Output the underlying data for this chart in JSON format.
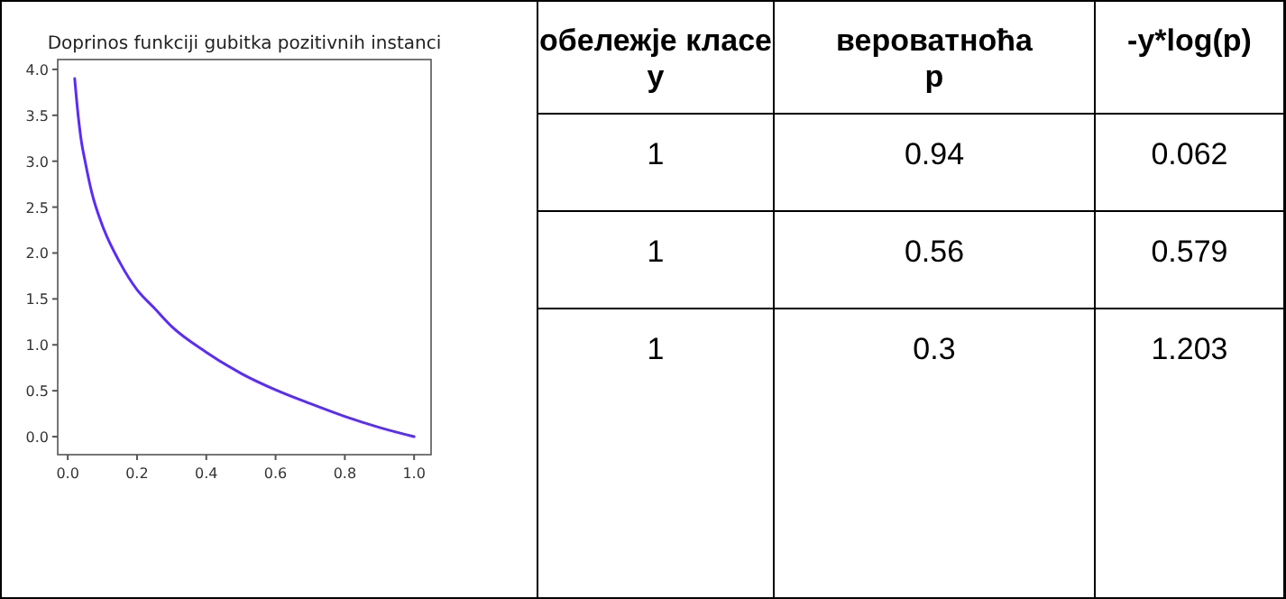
{
  "chart_data": [
    {
      "type": "line",
      "title": "Doprinos funkciji gubitka pozitivnih instanci",
      "color": "#5a2df5",
      "x": [
        0.02,
        0.03,
        0.04,
        0.05,
        0.07,
        0.1,
        0.15,
        0.2,
        0.25,
        0.3,
        0.4,
        0.5,
        0.6,
        0.7,
        0.8,
        0.9,
        1.0
      ],
      "values": [
        3.9,
        3.5,
        3.2,
        3.0,
        2.65,
        2.3,
        1.9,
        1.6,
        1.4,
        1.2,
        0.92,
        0.69,
        0.51,
        0.36,
        0.22,
        0.1,
        0
      ],
      "xlim": [
        -0.029,
        1.049
      ],
      "ylim": [
        -0.196,
        4.107
      ],
      "xticks": [
        {
          "value": 0,
          "label": "0.0"
        },
        0.2,
        0.4,
        0.6,
        0.8,
        {
          "value": 1,
          "label": "1.0"
        }
      ],
      "yticks": [
        {
          "value": 0,
          "label": "0.0"
        },
        0.5,
        {
          "value": 1,
          "label": "1.0"
        },
        1.5,
        {
          "value": 2,
          "label": "2.0"
        },
        2.5,
        {
          "value": 3,
          "label": "3.0"
        },
        3.5,
        {
          "value": 4,
          "label": "4.0"
        }
      ],
      "grid": false
    },
    {
      "type": "other",
      "annotations": [
        "обележје класе у",
        "вероватноћа p",
        "-y*log(p)",
        "1",
        "0.94",
        "0.062",
        "1",
        "0.56",
        "0.579",
        "1",
        "0.3",
        "1.203"
      ]
    }
  ]
}
